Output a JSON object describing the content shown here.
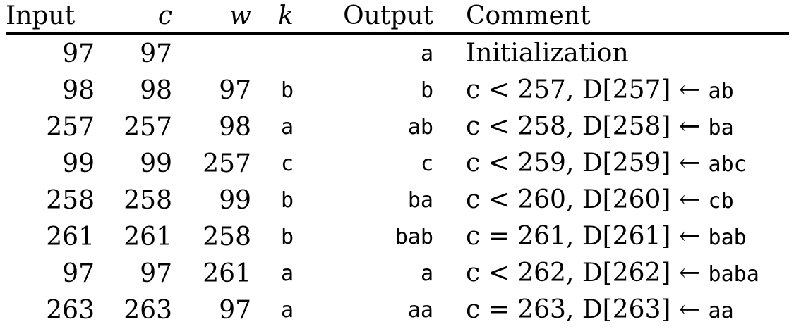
{
  "headers": {
    "input": "Input",
    "c": "c",
    "w": "w",
    "k": "k",
    "output": "Output",
    "comment": "Comment"
  },
  "rows": [
    {
      "input": "97",
      "c": "97",
      "w": "",
      "k": "",
      "output": "a",
      "comment_math": "Initialization",
      "comment_code": ""
    },
    {
      "input": "98",
      "c": "98",
      "w": "97",
      "k": "b",
      "output": "b",
      "comment_math": "c < 257, D[257] ←",
      "comment_code": "ab"
    },
    {
      "input": "257",
      "c": "257",
      "w": "98",
      "k": "a",
      "output": "ab",
      "comment_math": "c < 258, D[258] ←",
      "comment_code": "ba"
    },
    {
      "input": "99",
      "c": "99",
      "w": "257",
      "k": "c",
      "output": "c",
      "comment_math": "c < 259, D[259] ←",
      "comment_code": "abc"
    },
    {
      "input": "258",
      "c": "258",
      "w": "99",
      "k": "b",
      "output": "ba",
      "comment_math": "c < 260, D[260] ←",
      "comment_code": "cb"
    },
    {
      "input": "261",
      "c": "261",
      "w": "258",
      "k": "b",
      "output": "bab",
      "comment_math": "c = 261, D[261] ←",
      "comment_code": "bab"
    },
    {
      "input": "97",
      "c": "97",
      "w": "261",
      "k": "a",
      "output": "a",
      "comment_math": "c < 262, D[262] ←",
      "comment_code": "baba"
    },
    {
      "input": "263",
      "c": "263",
      "w": "97",
      "k": "a",
      "output": "aa",
      "comment_math": "c = 263, D[263] ←",
      "comment_code": "aa"
    }
  ]
}
